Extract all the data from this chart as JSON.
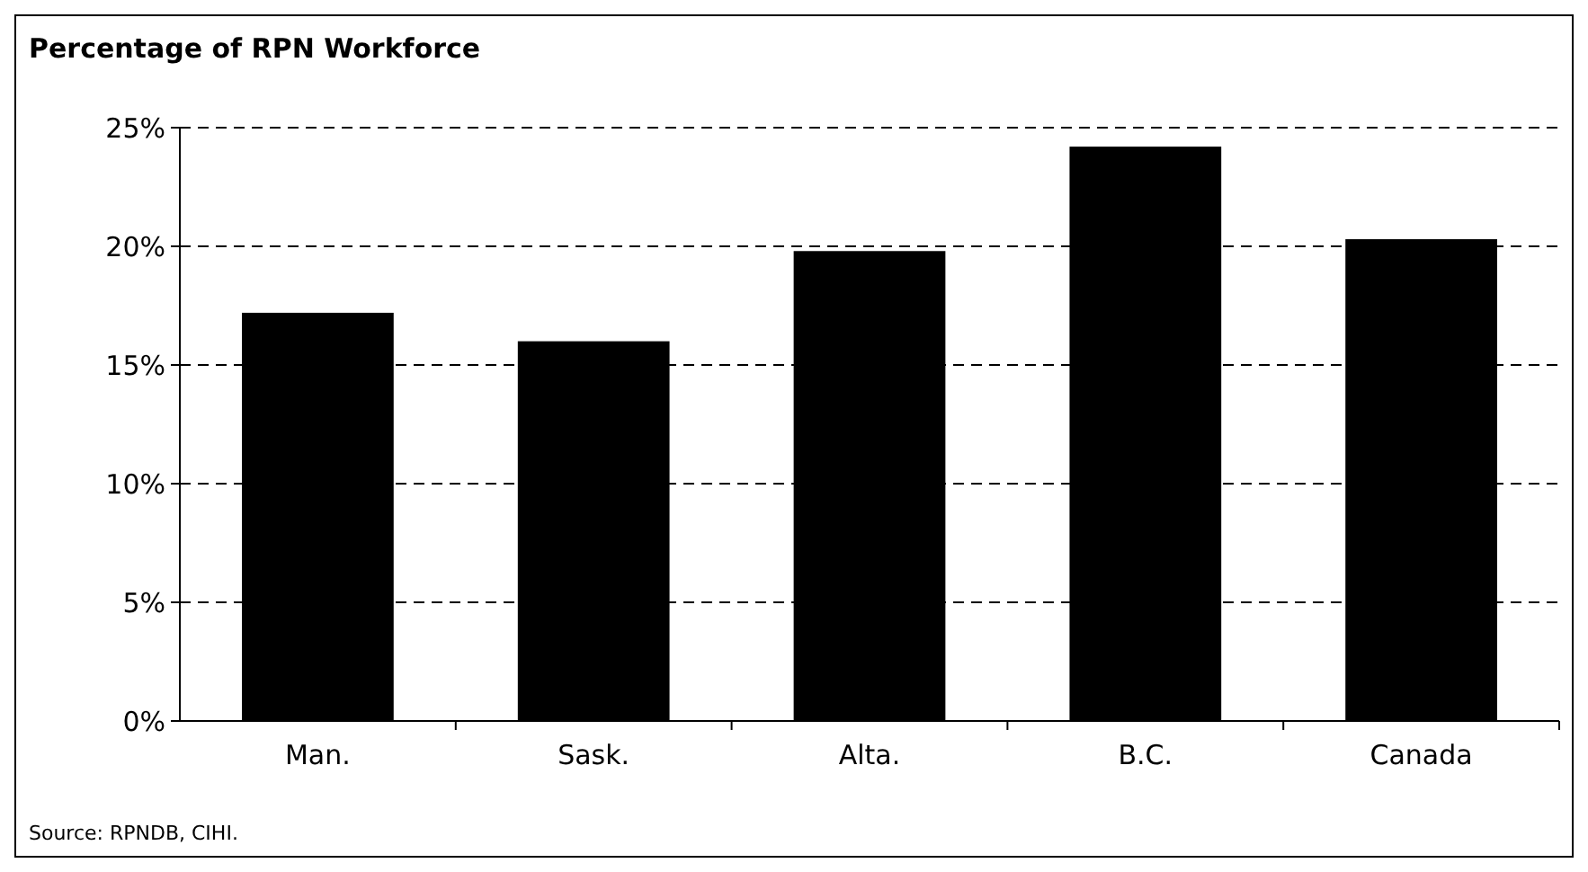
{
  "chart_data": {
    "type": "bar",
    "title": "Percentage of RPN Workforce",
    "categories": [
      "Man.",
      "Sask.",
      "Alta.",
      "B.C.",
      "Canada"
    ],
    "values": [
      17.2,
      16.0,
      19.8,
      24.2,
      20.3
    ],
    "color": "#000000",
    "ylim": [
      0,
      25
    ],
    "yticks": [
      {
        "value": 0,
        "label": "0%"
      },
      {
        "value": 5,
        "label": "5%"
      },
      {
        "value": 10,
        "label": "10%"
      },
      {
        "value": 15,
        "label": "15%"
      },
      {
        "value": 20,
        "label": "20%"
      },
      {
        "value": 25,
        "label": "25%"
      }
    ],
    "grid": "y",
    "line_style": "dashed",
    "annotations": [
      "Source: RPNDB, CIHI."
    ]
  }
}
